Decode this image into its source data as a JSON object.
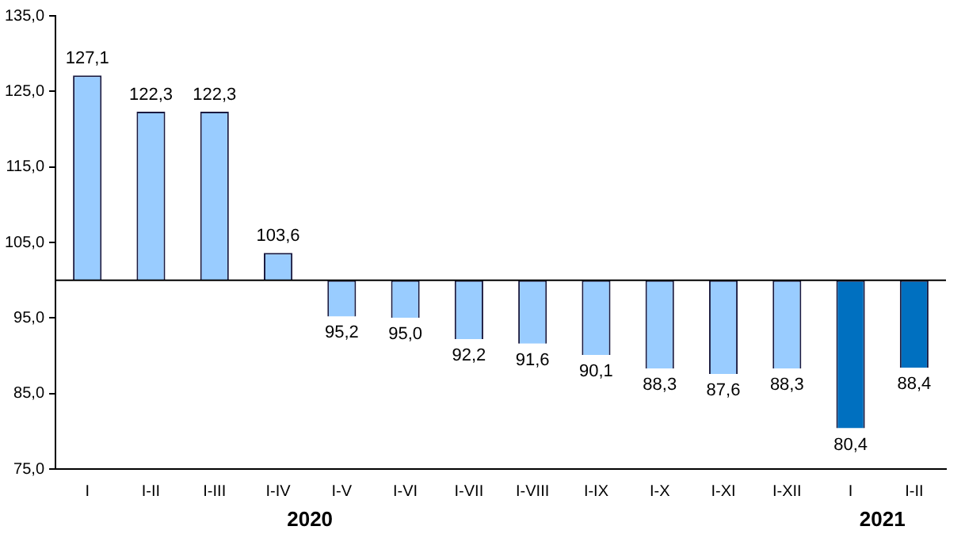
{
  "chart_data": {
    "type": "bar",
    "categories": [
      "I",
      "I-II",
      "I-III",
      "I-IV",
      "I-V",
      "I-VI",
      "I-VII",
      "I-VIII",
      "I-IX",
      "I-X",
      "I-XI",
      "I-XII",
      "I",
      "I-II"
    ],
    "base": [
      100,
      100,
      100,
      100,
      100,
      100,
      100,
      100,
      100,
      100,
      100,
      100,
      100,
      100
    ],
    "values": [
      27.1,
      22.3,
      22.3,
      3.6,
      -4.8,
      -5.0,
      -7.8,
      -8.4,
      -9.9,
      -11.7,
      -12.4,
      -11.7,
      -19.6,
      -11.6
    ],
    "value_labels": [
      "127,1",
      "122,3",
      "122,3",
      "103,6",
      "95,2",
      "95,0",
      "92,2",
      "91,6",
      "90,1",
      "88,3",
      "87,6",
      "88,3",
      "80,4",
      "88,4"
    ],
    "colors": [
      "#99ccff",
      "#99ccff",
      "#99ccff",
      "#99ccff",
      "#99ccff",
      "#99ccff",
      "#99ccff",
      "#99ccff",
      "#99ccff",
      "#99ccff",
      "#99ccff",
      "#99ccff",
      "#0070c0",
      "#0070c0"
    ],
    "ylim": [
      75,
      135
    ],
    "yticks": [
      {
        "value": 75,
        "label": "75,0"
      },
      {
        "value": 85,
        "label": "85,0"
      },
      {
        "value": 95,
        "label": "95,0"
      },
      {
        "value": 105,
        "label": "105,0"
      },
      {
        "value": 115,
        "label": "115,0"
      },
      {
        "value": 125,
        "label": "125,0"
      },
      {
        "value": 135,
        "label": "135,0"
      }
    ],
    "ref_lines": [
      {
        "axis": "y",
        "value": 100
      }
    ],
    "annotations": [
      "2020",
      "2021"
    ],
    "grid": false,
    "legend": false
  }
}
